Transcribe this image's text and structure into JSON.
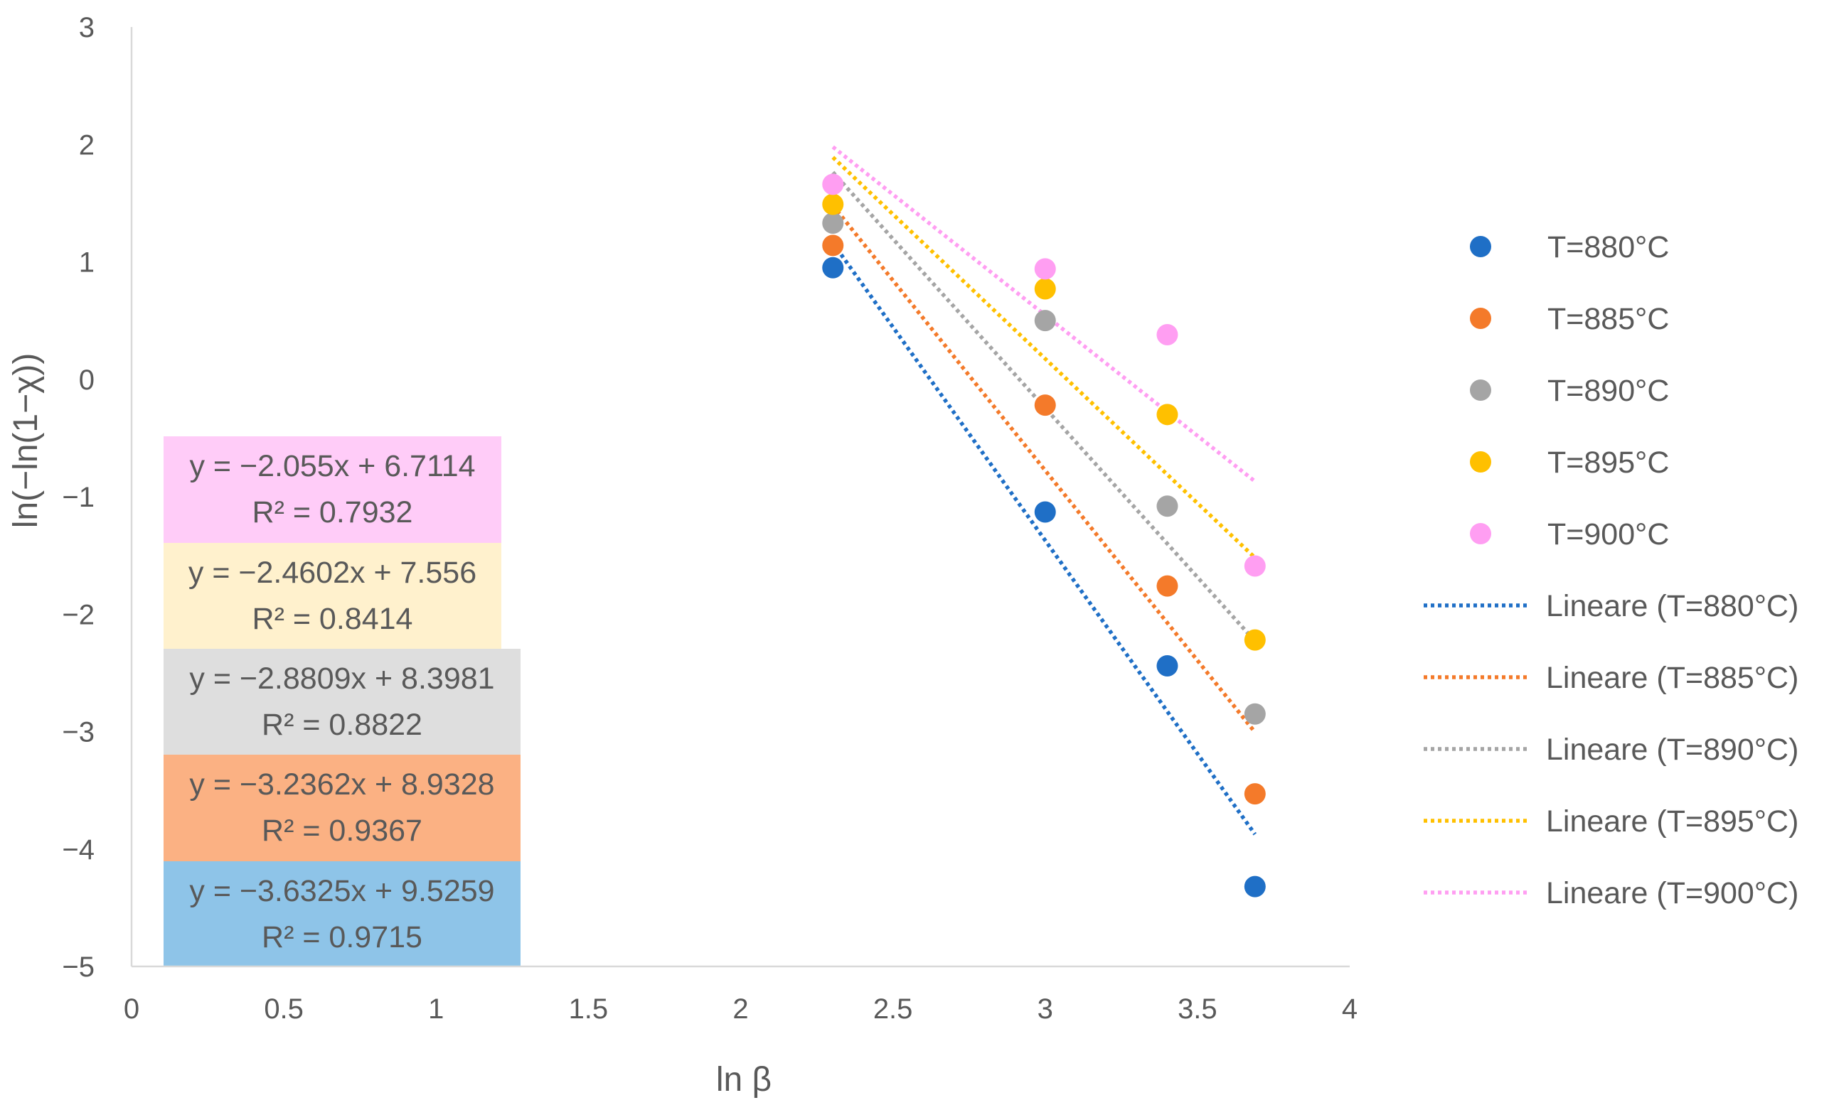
{
  "chart_data": {
    "type": "scatter",
    "title": "",
    "xlabel": "ln β",
    "ylabel": "ln(−ln(1−χ))",
    "xlim": [
      0,
      4
    ],
    "ylim": [
      -5,
      3
    ],
    "x_ticks": [
      0,
      0.5,
      1,
      1.5,
      2,
      2.5,
      3,
      3.5,
      4
    ],
    "x_tick_labels": [
      "0",
      "0.5",
      "1",
      "1.5",
      "2",
      "2.5",
      "3",
      "3.5",
      "4"
    ],
    "y_ticks": [
      3,
      2,
      1,
      0,
      -1,
      -2,
      -3,
      -4,
      -5
    ],
    "y_tick_labels": [
      "3",
      "2",
      "1",
      "0",
      "−1",
      "−2",
      "−3",
      "−4",
      "−5"
    ],
    "grid": false,
    "legend_position": "right",
    "series": [
      {
        "name": "T=880°C",
        "color": "#1f6fc6",
        "x": [
          2.303,
          3.0,
          3.401,
          3.689
        ],
        "y": [
          0.95,
          -1.13,
          -2.44,
          -4.32
        ],
        "trendline": {
          "name": "Lineare (T=880°C)",
          "slope": -3.6325,
          "intercept": 9.5259,
          "equation": "y = −3.6325x + 9.5259",
          "r2": "R² = 0.9715",
          "box_color": "#8ec4e8"
        }
      },
      {
        "name": "T=885°C",
        "color": "#f47a2a",
        "x": [
          2.303,
          3.0,
          3.401,
          3.689
        ],
        "y": [
          1.14,
          -0.22,
          -1.76,
          -3.53
        ],
        "trendline": {
          "name": "Lineare (T=885°C)",
          "slope": -3.2362,
          "intercept": 8.9328,
          "equation": "y = −3.2362x + 8.9328",
          "r2": "R² = 0.9367",
          "box_color": "#fbb183"
        }
      },
      {
        "name": "T=890°C",
        "color": "#a5a5a5",
        "x": [
          2.303,
          3.0,
          3.401,
          3.689
        ],
        "y": [
          1.33,
          0.5,
          -1.08,
          -2.85
        ],
        "trendline": {
          "name": "Lineare (T=890°C)",
          "slope": -2.8809,
          "intercept": 8.3981,
          "equation": "y = −2.8809x + 8.3981",
          "r2": "R² = 0.8822",
          "box_color": "#dedede"
        }
      },
      {
        "name": "T=895°C",
        "color": "#ffc000",
        "x": [
          2.303,
          3.0,
          3.401,
          3.689
        ],
        "y": [
          1.49,
          0.77,
          -0.3,
          -2.22
        ],
        "trendline": {
          "name": "Lineare (T=895°C)",
          "slope": -2.4602,
          "intercept": 7.556,
          "equation": "y = −2.4602x + 7.556",
          "r2": "R² = 0.8414",
          "box_color": "#fff1cd"
        }
      },
      {
        "name": "T=900°C",
        "color": "#ff9ef2",
        "x": [
          2.303,
          3.0,
          3.401,
          3.689
        ],
        "y": [
          1.66,
          0.94,
          0.38,
          -1.59
        ],
        "trendline": {
          "name": "Lineare (T=900°C)",
          "slope": -2.055,
          "intercept": 6.7114,
          "equation": "y = −2.055x + 6.7114",
          "r2": "R² = 0.7932",
          "box_color": "#ffccf8"
        }
      }
    ]
  }
}
